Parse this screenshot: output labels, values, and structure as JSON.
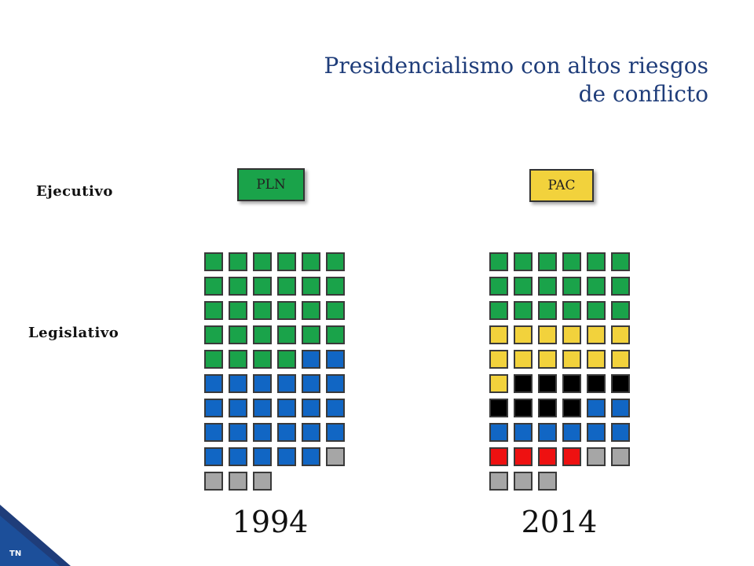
{
  "title_line1": "Presidencialismo con altos riesgos",
  "title_line2": "de conflicto",
  "labels": {
    "executive": "Ejecutivo",
    "legislative": "Legislativo"
  },
  "colors": {
    "PLN": "#1aa34a",
    "PAC": "#f2d23c",
    "blue": "#1166c4",
    "black": "#000000",
    "red": "#ee1111",
    "gray": "#a6a6a6"
  },
  "panels": [
    {
      "year": "1994",
      "executive_party": "PLN",
      "executive_color": "#1aa34a",
      "seats": [
        {
          "color": "#1aa34a",
          "count": 28
        },
        {
          "color": "#1166c4",
          "count": 25
        },
        {
          "color": "#a6a6a6",
          "count": 4
        }
      ]
    },
    {
      "year": "2014",
      "executive_party": "PAC",
      "executive_color": "#f2d23c",
      "seats": [
        {
          "color": "#1aa34a",
          "count": 18
        },
        {
          "color": "#f2d23c",
          "count": 13
        },
        {
          "color": "#000000",
          "count": 9
        },
        {
          "color": "#1166c4",
          "count": 8
        },
        {
          "color": "#ee1111",
          "count": 4
        },
        {
          "color": "#a6a6a6",
          "count": 5
        }
      ]
    }
  ],
  "corner_label": "TN"
}
